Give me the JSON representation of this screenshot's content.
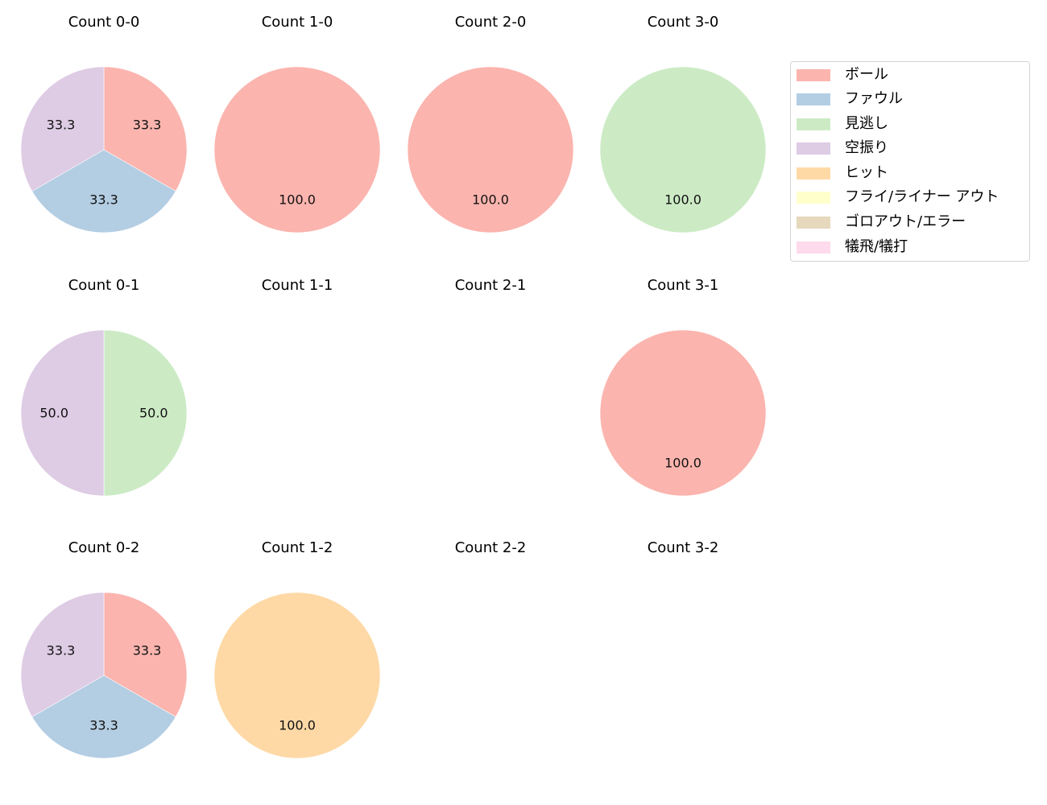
{
  "colors": {
    "ball": "#fbb4ae",
    "foul": "#b3cde3",
    "called_strike": "#ccebc5",
    "swinging_strike": "#decbe4",
    "hit": "#fed9a6",
    "fly_liner_out": "#ffffcc",
    "ground_out_error": "#e5d8bd",
    "sacrifice": "#fddaec"
  },
  "legend": {
    "items": [
      {
        "label": "ボール",
        "color": "#fbb4ae"
      },
      {
        "label": "ファウル",
        "color": "#b3cde3"
      },
      {
        "label": "見逃し",
        "color": "#ccebc5"
      },
      {
        "label": "空振り",
        "color": "#decbe4"
      },
      {
        "label": "ヒット",
        "color": "#fed9a6"
      },
      {
        "label": "フライ/ライナー アウト",
        "color": "#ffffcc"
      },
      {
        "label": "ゴロアウト/エラー",
        "color": "#e5d8bd"
      },
      {
        "label": "犠飛/犠打",
        "color": "#fddaec"
      }
    ]
  },
  "chart_data": {
    "type": "pie",
    "title": "",
    "legend_position": "upper right (outside grid)",
    "categories": [
      "ボール",
      "ファウル",
      "見逃し",
      "空振り",
      "ヒット",
      "フライ/ライナー アウト",
      "ゴロアウト/エラー",
      "犠飛/犠打"
    ],
    "start_angle": 90,
    "counterclock": false,
    "value_format": "%.1f",
    "subplots": [
      {
        "title": "Count 0-0",
        "row": 0,
        "col": 0,
        "slices": [
          {
            "label": "ボール",
            "value": 33.3,
            "color": "#fbb4ae"
          },
          {
            "label": "ファウル",
            "value": 33.3,
            "color": "#b3cde3"
          },
          {
            "label": "空振り",
            "value": 33.3,
            "color": "#decbe4"
          }
        ]
      },
      {
        "title": "Count 1-0",
        "row": 0,
        "col": 1,
        "slices": [
          {
            "label": "ボール",
            "value": 100.0,
            "color": "#fbb4ae"
          }
        ]
      },
      {
        "title": "Count 2-0",
        "row": 0,
        "col": 2,
        "slices": [
          {
            "label": "ボール",
            "value": 100.0,
            "color": "#fbb4ae"
          }
        ]
      },
      {
        "title": "Count 3-0",
        "row": 0,
        "col": 3,
        "slices": [
          {
            "label": "見逃し",
            "value": 100.0,
            "color": "#ccebc5"
          }
        ]
      },
      {
        "title": "Count 0-1",
        "row": 1,
        "col": 0,
        "slices": [
          {
            "label": "見逃し",
            "value": 50.0,
            "color": "#ccebc5"
          },
          {
            "label": "空振り",
            "value": 50.0,
            "color": "#decbe4"
          }
        ]
      },
      {
        "title": "Count 1-1",
        "row": 1,
        "col": 1,
        "slices": []
      },
      {
        "title": "Count 2-1",
        "row": 1,
        "col": 2,
        "slices": []
      },
      {
        "title": "Count 3-1",
        "row": 1,
        "col": 3,
        "slices": [
          {
            "label": "ボール",
            "value": 100.0,
            "color": "#fbb4ae"
          }
        ]
      },
      {
        "title": "Count 0-2",
        "row": 2,
        "col": 0,
        "slices": [
          {
            "label": "ボール",
            "value": 33.3,
            "color": "#fbb4ae"
          },
          {
            "label": "ファウル",
            "value": 33.3,
            "color": "#b3cde3"
          },
          {
            "label": "空振り",
            "value": 33.3,
            "color": "#decbe4"
          }
        ]
      },
      {
        "title": "Count 1-2",
        "row": 2,
        "col": 1,
        "slices": [
          {
            "label": "ヒット",
            "value": 100.0,
            "color": "#fed9a6"
          }
        ]
      },
      {
        "title": "Count 2-2",
        "row": 2,
        "col": 2,
        "slices": []
      },
      {
        "title": "Count 3-2",
        "row": 2,
        "col": 3,
        "slices": []
      }
    ]
  }
}
